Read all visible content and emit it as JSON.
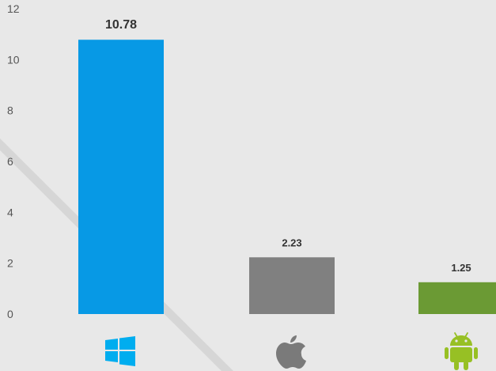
{
  "chart_data": {
    "type": "bar",
    "categories": [
      "Windows",
      "Apple",
      "Android"
    ],
    "values": [
      10.78,
      2.23,
      1.25
    ],
    "value_labels": [
      "10.78",
      "2.23",
      "1.25"
    ],
    "colors": [
      "#0799e5",
      "#808080",
      "#6b9a34"
    ],
    "icons": [
      "windows-logo-icon",
      "apple-logo-icon",
      "android-logo-icon"
    ],
    "yticks": [
      "0",
      "2",
      "4",
      "6",
      "8",
      "10",
      "12"
    ],
    "ylim": [
      0,
      12
    ],
    "grid": false,
    "legend": "none",
    "title": "",
    "xlabel": "",
    "ylabel": ""
  }
}
